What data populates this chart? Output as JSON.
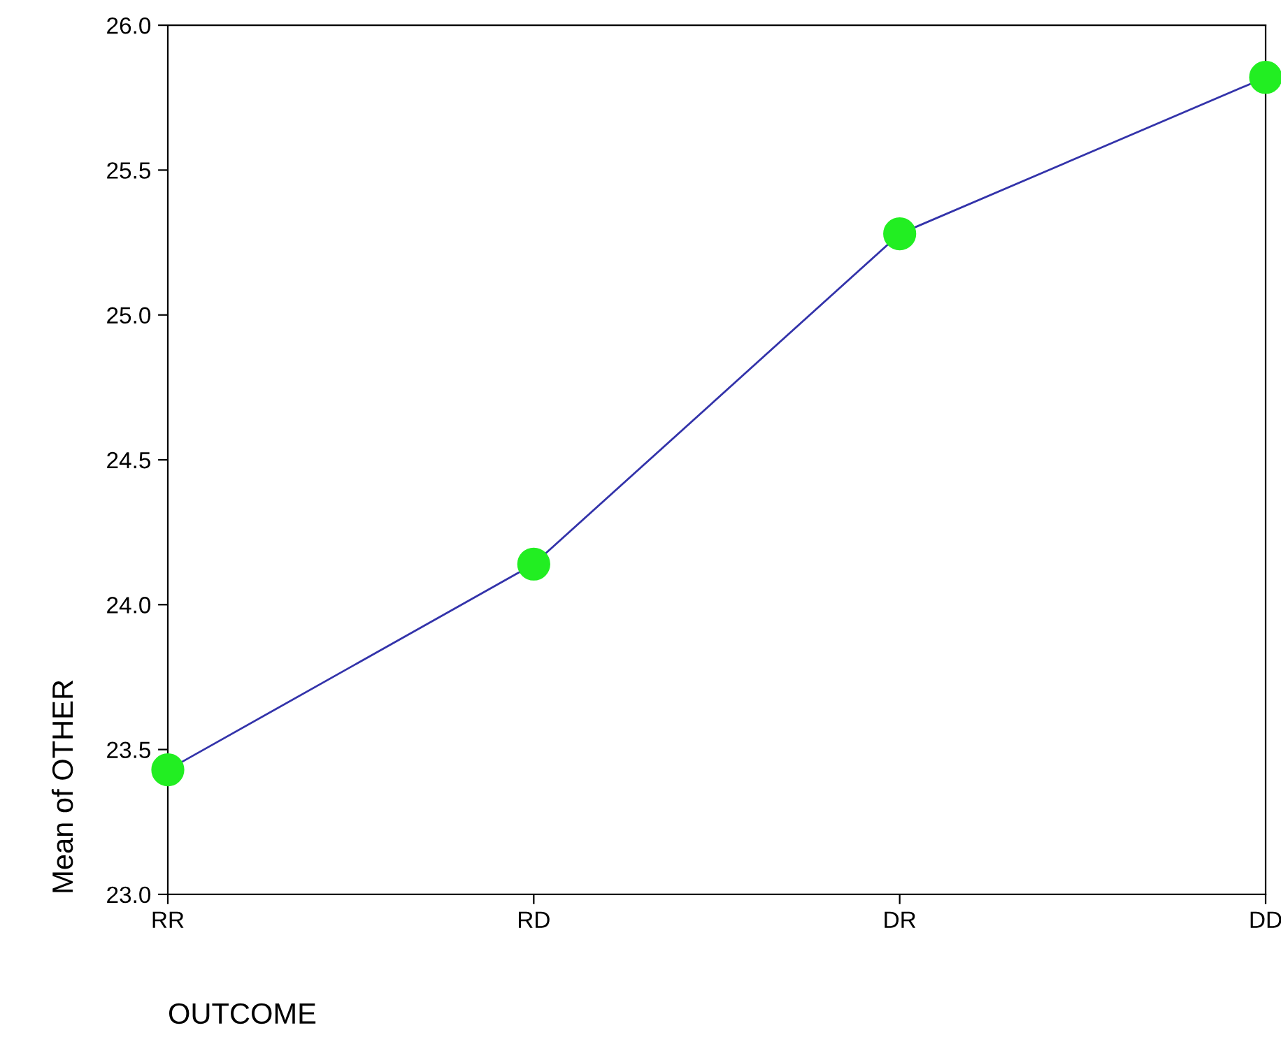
{
  "chart_data": {
    "type": "line",
    "xlabel": "OUTCOME",
    "ylabel": "Mean of OTHER",
    "categories": [
      "RR",
      "RD",
      "DR",
      "DD"
    ],
    "series": [
      {
        "color": "#3333aa",
        "colors": [
          "#22ee22",
          "#22ee22",
          "#22ee22",
          "#22ee22"
        ],
        "values": [
          23.43,
          24.14,
          25.28,
          25.82
        ]
      }
    ],
    "ylim": [
      23,
      26
    ],
    "yticks": [
      {
        "value": 23,
        "label": "23.0"
      },
      {
        "value": 23.5,
        "label": "23.5"
      },
      {
        "value": 24,
        "label": "24.0"
      },
      {
        "value": 24.5,
        "label": "24.5"
      },
      {
        "value": 25,
        "label": "25.0"
      },
      {
        "value": 25.5,
        "label": "25.5"
      },
      {
        "value": 26,
        "label": "26.0"
      }
    ],
    "marker": "circle",
    "line_style": "solid",
    "grid": false,
    "legend": false
  }
}
